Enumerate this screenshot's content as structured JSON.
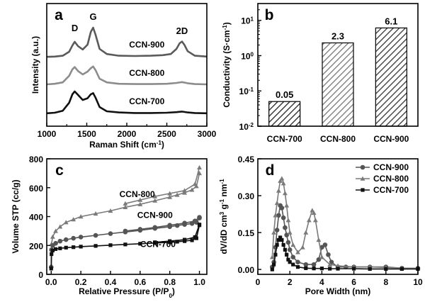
{
  "chart_data": [
    {
      "panel": "a",
      "type": "line",
      "xlabel": "Raman Shift (cm",
      "xlabel_sup": "-1",
      "xlabel_end": ")",
      "ylabel": "Intensity (a.u.)",
      "xlim": [
        1000,
        3000
      ],
      "xticks": [
        1000,
        1500,
        2000,
        2500,
        3000
      ],
      "peak_labels": [
        {
          "text": "D",
          "x": 1350
        },
        {
          "text": "G",
          "x": 1580
        },
        {
          "text": "2D",
          "x": 2690
        }
      ],
      "series": [
        {
          "name": "CCN-900",
          "color": "#5a5a5a",
          "offset": 2.0,
          "x": [
            1000,
            1100,
            1200,
            1280,
            1320,
            1350,
            1390,
            1450,
            1510,
            1550,
            1580,
            1610,
            1660,
            1750,
            1900,
            2100,
            2300,
            2450,
            2550,
            2620,
            2660,
            2690,
            2720,
            2760,
            2850,
            3000
          ],
          "y": [
            0.02,
            0.03,
            0.06,
            0.2,
            0.42,
            0.55,
            0.4,
            0.28,
            0.45,
            0.9,
            1.05,
            0.8,
            0.3,
            0.12,
            0.06,
            0.05,
            0.06,
            0.08,
            0.12,
            0.3,
            0.5,
            0.56,
            0.44,
            0.22,
            0.06,
            0.03
          ]
        },
        {
          "name": "CCN-800",
          "color": "#8c8c8c",
          "offset": 1.0,
          "x": [
            1000,
            1100,
            1200,
            1280,
            1320,
            1350,
            1390,
            1450,
            1510,
            1550,
            1580,
            1610,
            1660,
            1750,
            1900,
            2100,
            2300,
            2500,
            2620,
            2690,
            2760,
            2850,
            3000
          ],
          "y": [
            0.05,
            0.07,
            0.12,
            0.35,
            0.58,
            0.66,
            0.52,
            0.4,
            0.5,
            0.62,
            0.68,
            0.55,
            0.25,
            0.12,
            0.07,
            0.06,
            0.06,
            0.07,
            0.1,
            0.13,
            0.09,
            0.06,
            0.05
          ]
        },
        {
          "name": "CCN-700",
          "color": "#111111",
          "offset": 0.0,
          "x": [
            1000,
            1100,
            1200,
            1280,
            1320,
            1350,
            1390,
            1450,
            1510,
            1550,
            1580,
            1610,
            1660,
            1750,
            1900,
            2100,
            2300,
            2500,
            2620,
            2690,
            2760,
            2850,
            3000
          ],
          "y": [
            0.03,
            0.05,
            0.12,
            0.4,
            0.7,
            0.8,
            0.68,
            0.5,
            0.56,
            0.7,
            0.74,
            0.58,
            0.25,
            0.1,
            0.06,
            0.04,
            0.04,
            0.05,
            0.07,
            0.09,
            0.06,
            0.04,
            0.03
          ]
        }
      ]
    },
    {
      "panel": "b",
      "type": "bar",
      "ylabel": "Conductivity (S·cm",
      "ylabel_sup": "-1",
      "ylabel_end": ")",
      "yscale": "log",
      "ylim": [
        0.01,
        30
      ],
      "ytick_exponents": [
        -2,
        -1,
        0,
        1
      ],
      "categories": [
        "CCN-700",
        "CCN-800",
        "CCN-900"
      ],
      "values": [
        0.05,
        2.3,
        6.1
      ],
      "value_labels": [
        "0.05",
        "2.3",
        "6.1"
      ],
      "hatch_colors": [
        "#222222",
        "#777777",
        "#333333"
      ]
    },
    {
      "panel": "c",
      "type": "line",
      "xlabel": "Relative Pressure (P/P",
      "xlabel_sub": "0",
      "xlabel_end": ")",
      "ylabel": "Volume STP (cc/g)",
      "xlim": [
        -0.03,
        1.05
      ],
      "ylim": [
        0,
        800
      ],
      "xticks": [
        "0.0",
        "0.2",
        "0.4",
        "0.6",
        "0.8",
        "1.0"
      ],
      "yticks": [
        0,
        200,
        400,
        600,
        800
      ],
      "series": [
        {
          "name": "CCN-800",
          "marker": "triangle",
          "color": "#7a7a7a",
          "adsorption": {
            "x": [
              0.0,
              0.002,
              0.01,
              0.03,
              0.06,
              0.1,
              0.15,
              0.2,
              0.3,
              0.4,
              0.5,
              0.6,
              0.7,
              0.8,
              0.85,
              0.9,
              0.95,
              0.98,
              1.0
            ],
            "y": [
              60,
              210,
              260,
              300,
              330,
              360,
              380,
              400,
              420,
              440,
              465,
              485,
              510,
              535,
              550,
              565,
              585,
              610,
              700
            ]
          },
          "desorption": {
            "x": [
              1.0,
              0.97,
              0.9,
              0.8,
              0.7,
              0.6,
              0.5
            ],
            "y": [
              740,
              625,
              580,
              560,
              540,
              515,
              490
            ]
          }
        },
        {
          "name": "CCN-900",
          "marker": "circle",
          "color": "#555555",
          "adsorption": {
            "x": [
              0.0,
              0.002,
              0.01,
              0.03,
              0.06,
              0.1,
              0.15,
              0.2,
              0.3,
              0.4,
              0.5,
              0.6,
              0.7,
              0.8,
              0.85,
              0.9,
              0.95,
              0.98,
              1.0
            ],
            "y": [
              50,
              170,
              200,
              215,
              230,
              240,
              250,
              258,
              270,
              282,
              293,
              305,
              318,
              330,
              338,
              345,
              352,
              360,
              390
            ]
          },
          "desorption": {
            "x": [
              1.0,
              0.97,
              0.9,
              0.8,
              0.7,
              0.6,
              0.5
            ],
            "y": [
              395,
              370,
              355,
              340,
              325,
              312,
              300
            ]
          }
        },
        {
          "name": "CCN-700",
          "marker": "square",
          "color": "#111111",
          "adsorption": {
            "x": [
              0.0,
              0.002,
              0.01,
              0.03,
              0.06,
              0.1,
              0.15,
              0.2,
              0.3,
              0.4,
              0.5,
              0.6,
              0.7,
              0.8,
              0.85,
              0.9,
              0.95,
              0.98,
              1.0
            ],
            "y": [
              40,
              140,
              165,
              175,
              180,
              185,
              188,
              192,
              197,
              202,
              207,
              212,
              217,
              222,
              226,
              230,
              236,
              250,
              340
            ]
          },
          "desorption": {
            "x": [
              1.0,
              0.97,
              0.9,
              0.8,
              0.7
            ],
            "y": [
              345,
              258,
              240,
              230,
              222
            ]
          }
        }
      ],
      "series_labels": [
        {
          "text": "CCN-800",
          "x": 0.58,
          "y": 535
        },
        {
          "text": "CCN-900",
          "x": 0.7,
          "y": 390
        },
        {
          "text": "CCN-700",
          "x": 0.72,
          "y": 190
        }
      ]
    },
    {
      "panel": "d",
      "type": "line",
      "xlabel": "Pore Width (nm)",
      "ylabel": "dV/dD cm",
      "ylabel_sup1": "3",
      "ylabel_mid": " g",
      "ylabel_sup2": "-1",
      "ylabel_mid2": " nm",
      "ylabel_sup3": "-1",
      "xlim": [
        0,
        10
      ],
      "ylim": [
        -0.02,
        0.45
      ],
      "xticks": [
        0,
        2,
        4,
        6,
        8,
        10
      ],
      "yticks": [
        "0.00",
        "0.15",
        "0.30",
        "0.45"
      ],
      "ytick_values": [
        0,
        0.15,
        0.3,
        0.45
      ],
      "legend_position": "top-right",
      "series": [
        {
          "name": "CCN-900",
          "marker": "circle",
          "color": "#555555",
          "x": [
            0.9,
            1.0,
            1.1,
            1.2,
            1.3,
            1.4,
            1.5,
            1.6,
            1.7,
            1.8,
            1.9,
            2.0,
            2.2,
            2.5,
            3.0,
            3.5,
            3.8,
            4.0,
            4.2,
            4.4,
            4.6,
            5.0,
            5.5,
            6,
            7,
            8,
            9,
            10
          ],
          "y": [
            0.01,
            0.03,
            0.09,
            0.16,
            0.22,
            0.26,
            0.25,
            0.21,
            0.17,
            0.14,
            0.11,
            0.08,
            0.05,
            0.03,
            0.02,
            0.02,
            0.04,
            0.09,
            0.1,
            0.06,
            0.03,
            0.01,
            0.01,
            0.01,
            0.01,
            0.01,
            0.005,
            0.005
          ]
        },
        {
          "name": "CCN-800",
          "marker": "triangle",
          "color": "#7a7a7a",
          "x": [
            0.9,
            1.0,
            1.1,
            1.2,
            1.3,
            1.4,
            1.5,
            1.6,
            1.7,
            1.8,
            1.9,
            2.0,
            2.2,
            2.5,
            2.8,
            3.0,
            3.2,
            3.4,
            3.5,
            3.6,
            3.8,
            4.0,
            4.5,
            5,
            6,
            7,
            8,
            9,
            10
          ],
          "y": [
            0.05,
            0.15,
            0.22,
            0.27,
            0.32,
            0.36,
            0.37,
            0.35,
            0.31,
            0.26,
            0.2,
            0.15,
            0.1,
            0.07,
            0.09,
            0.15,
            0.2,
            0.24,
            0.23,
            0.2,
            0.12,
            0.05,
            0.02,
            0.015,
            0.01,
            0.01,
            0.008,
            0.005,
            0.005
          ]
        },
        {
          "name": "CCN-700",
          "marker": "square",
          "color": "#111111",
          "x": [
            0.9,
            1.0,
            1.1,
            1.2,
            1.3,
            1.4,
            1.5,
            1.6,
            1.7,
            1.8,
            1.9,
            2.0,
            2.2,
            2.5,
            3.0,
            3.5,
            4.0,
            4.5,
            5,
            6,
            7,
            8,
            9,
            10
          ],
          "y": [
            0.0,
            0.02,
            0.06,
            0.1,
            0.12,
            0.13,
            0.12,
            0.1,
            0.08,
            0.06,
            0.04,
            0.03,
            0.02,
            0.01,
            0.005,
            0.004,
            0.004,
            0.003,
            0.003,
            0.003,
            0.002,
            0.002,
            0.002,
            0.002
          ]
        }
      ]
    }
  ]
}
